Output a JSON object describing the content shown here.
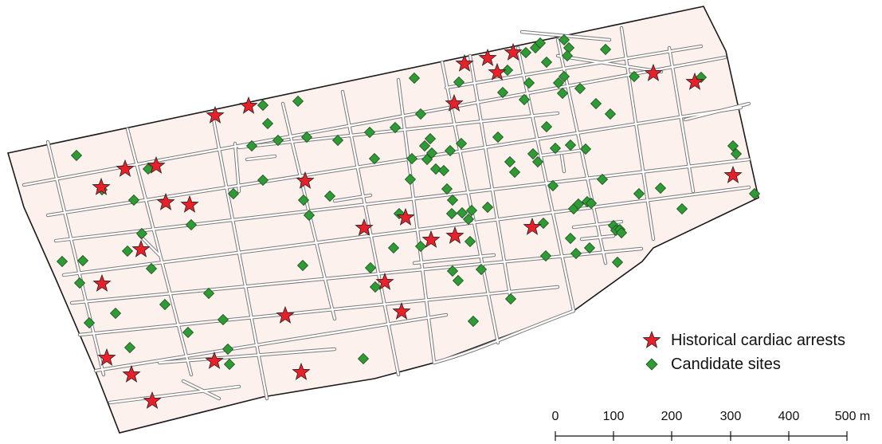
{
  "legend": {
    "arrests_label": "Historical cardiac arrests",
    "sites_label": "Candidate sites",
    "arrest_color": "#e8202a",
    "site_color": "#2e9b34"
  },
  "scale_bar": {
    "unit": "m",
    "ticks": [
      "0",
      "100",
      "200",
      "300",
      "400",
      "500 m"
    ]
  },
  "colors": {
    "land": "#fdf1ee",
    "streets": "#ffffff",
    "street_edge": "#7a7a7a",
    "boundary": "#1a1a1a"
  }
}
